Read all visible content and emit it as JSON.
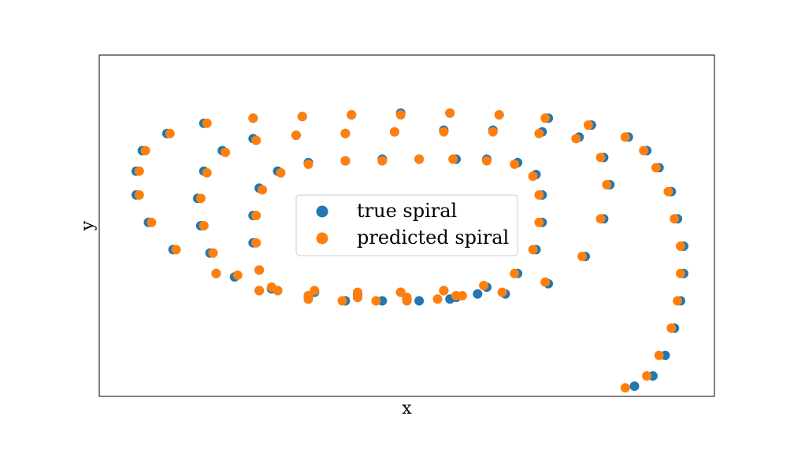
{
  "chart_data": {
    "type": "scatter",
    "xlabel": "x",
    "ylabel": "y",
    "xlim": [
      -1.0,
      1.0
    ],
    "ylim": [
      -1.0,
      1.0
    ],
    "grid": false,
    "ticks_visible": false,
    "legend": {
      "placement": "center",
      "entries": [
        "true spiral",
        "predicted spiral"
      ]
    },
    "series": [
      {
        "name": "true spiral",
        "color": "#1f77b4",
        "x": [
          0.23,
          0.14,
          0.04,
          -0.08,
          -0.2,
          -0.32,
          -0.42,
          -0.48,
          -0.5,
          -0.5,
          -0.48,
          -0.42,
          -0.32,
          -0.2,
          -0.08,
          0.04,
          0.16,
          0.26,
          0.36,
          0.42,
          0.44,
          0.44,
          0.42,
          0.36,
          0.26,
          0.12,
          -0.02,
          -0.16,
          -0.3,
          -0.44,
          -0.56,
          -0.64,
          -0.67,
          -0.68,
          -0.66,
          -0.6,
          -0.5,
          -0.36,
          -0.2,
          -0.04,
          0.12,
          0.28,
          0.44,
          0.56,
          0.64,
          0.66,
          0.64,
          0.58,
          0.46,
          0.32,
          0.16,
          0.0,
          -0.16,
          -0.32,
          -0.48,
          -0.62,
          -0.76,
          -0.84,
          -0.88,
          -0.88,
          -0.86,
          -0.78,
          -0.66,
          -0.5,
          -0.34,
          -0.18,
          -0.02,
          0.14,
          0.3,
          0.46,
          0.6,
          0.72,
          0.78,
          0.82,
          0.86,
          0.88,
          0.9,
          0.9,
          0.89,
          0.87,
          0.84,
          0.8,
          0.74
        ],
        "y": [
          -0.4,
          -0.43,
          -0.44,
          -0.44,
          -0.44,
          -0.43,
          -0.38,
          -0.26,
          -0.1,
          0.06,
          0.22,
          0.32,
          0.37,
          0.38,
          0.39,
          0.39,
          0.39,
          0.39,
          0.37,
          0.3,
          0.18,
          0.02,
          -0.14,
          -0.28,
          -0.36,
          -0.38,
          -0.39,
          -0.4,
          -0.39,
          -0.37,
          -0.3,
          -0.16,
          0.0,
          0.16,
          0.32,
          0.44,
          0.51,
          0.53,
          0.54,
          0.55,
          0.56,
          0.56,
          0.55,
          0.52,
          0.4,
          0.24,
          0.04,
          -0.18,
          -0.34,
          -0.4,
          -0.42,
          -0.43,
          -0.42,
          -0.41,
          -0.38,
          -0.28,
          -0.14,
          0.02,
          0.18,
          0.32,
          0.44,
          0.54,
          0.6,
          0.63,
          0.64,
          0.65,
          0.66,
          0.66,
          0.65,
          0.63,
          0.59,
          0.52,
          0.44,
          0.34,
          0.2,
          0.04,
          -0.12,
          -0.28,
          -0.44,
          -0.6,
          -0.76,
          -0.88,
          -0.94
        ]
      },
      {
        "name": "predicted spiral",
        "color": "#ff7f0e",
        "x": [
          0.18,
          0.1,
          0.0,
          -0.1,
          -0.21,
          -0.32,
          -0.42,
          -0.48,
          -0.49,
          -0.49,
          -0.47,
          -0.41,
          -0.32,
          -0.2,
          -0.08,
          0.04,
          0.15,
          0.26,
          0.35,
          0.41,
          0.43,
          0.43,
          0.41,
          0.35,
          0.25,
          0.12,
          -0.02,
          -0.16,
          -0.3,
          -0.44,
          -0.55,
          -0.63,
          -0.66,
          -0.67,
          -0.65,
          -0.59,
          -0.49,
          -0.36,
          -0.2,
          -0.04,
          0.12,
          0.28,
          0.43,
          0.55,
          0.63,
          0.65,
          0.63,
          0.57,
          0.45,
          0.31,
          0.16,
          0.0,
          -0.16,
          -0.32,
          -0.48,
          -0.62,
          -0.75,
          -0.83,
          -0.87,
          -0.87,
          -0.85,
          -0.77,
          -0.65,
          -0.5,
          -0.34,
          -0.18,
          -0.02,
          0.14,
          0.3,
          0.45,
          0.59,
          0.71,
          0.77,
          0.81,
          0.85,
          0.87,
          0.89,
          0.89,
          0.88,
          0.86,
          0.82,
          0.78,
          0.71
        ],
        "y": [
          -0.41,
          -0.43,
          -0.44,
          -0.44,
          -0.44,
          -0.43,
          -0.38,
          -0.26,
          -0.1,
          0.06,
          0.21,
          0.31,
          0.36,
          0.38,
          0.38,
          0.39,
          0.39,
          0.38,
          0.36,
          0.29,
          0.18,
          0.02,
          -0.14,
          -0.28,
          -0.35,
          -0.38,
          -0.39,
          -0.39,
          -0.38,
          -0.36,
          -0.29,
          -0.16,
          0.0,
          0.16,
          0.31,
          0.43,
          0.5,
          0.53,
          0.54,
          0.55,
          0.55,
          0.55,
          0.54,
          0.51,
          0.4,
          0.24,
          0.04,
          -0.18,
          -0.33,
          -0.39,
          -0.41,
          -0.42,
          -0.42,
          -0.41,
          -0.38,
          -0.28,
          -0.14,
          0.02,
          0.18,
          0.32,
          0.44,
          0.54,
          0.6,
          0.63,
          0.64,
          0.65,
          0.65,
          0.66,
          0.65,
          0.63,
          0.59,
          0.52,
          0.44,
          0.34,
          0.2,
          0.04,
          -0.12,
          -0.28,
          -0.44,
          -0.6,
          -0.76,
          -0.88,
          -0.95
        ]
      }
    ]
  }
}
